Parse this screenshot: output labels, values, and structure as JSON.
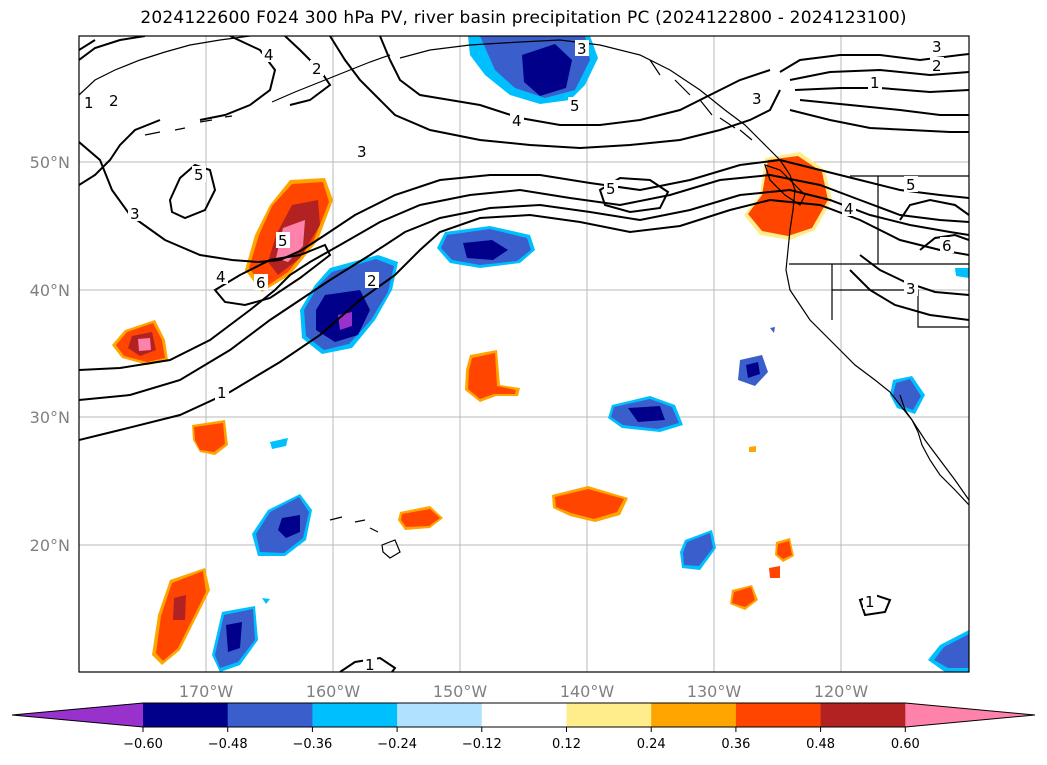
{
  "title": "2024122600 F024 300 hPa PV, river basin precipitation PC (2024122800 - 2024123100)",
  "lat_labels": [
    "50°N",
    "40°N",
    "30°N",
    "20°N"
  ],
  "lon_labels": [
    "170°W",
    "160°W",
    "150°W",
    "140°W",
    "130°W",
    "120°W"
  ],
  "contour_labels": [
    "1",
    "2",
    "3",
    "4",
    "5",
    "6"
  ],
  "colorbar": {
    "ticks": [
      "−0.60",
      "−0.48",
      "−0.36",
      "−0.24",
      "−0.12",
      "0.12",
      "0.24",
      "0.36",
      "0.48",
      "0.60"
    ],
    "colors": [
      "#9932cc",
      "#00008b",
      "#3a5fcd",
      "#00bfff",
      "#b0e2ff",
      "#ffffff",
      "#ffec8b",
      "#ffa500",
      "#ff4500",
      "#b22222",
      "#ff82ab"
    ]
  }
}
